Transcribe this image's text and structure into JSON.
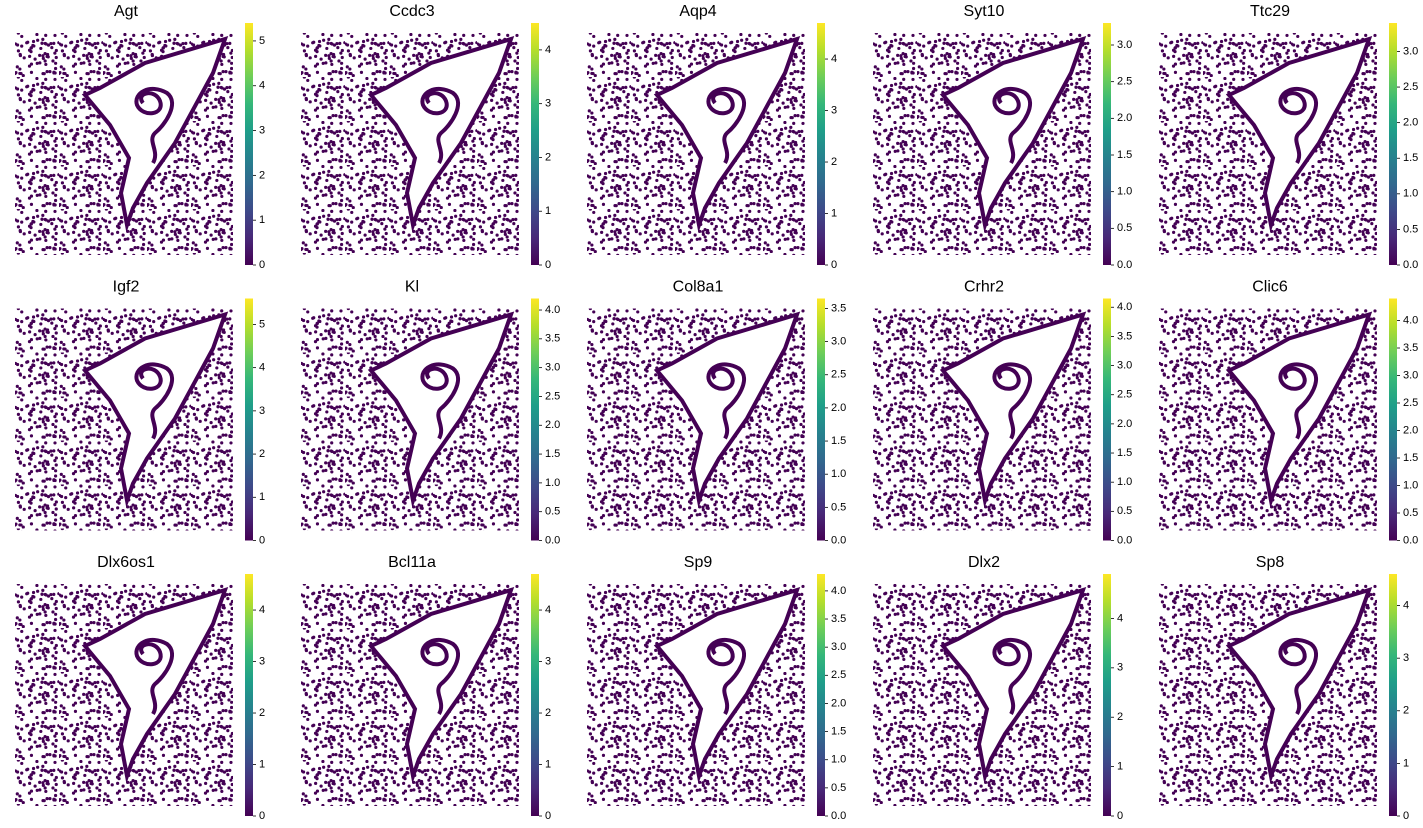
{
  "chart_data": [
    {
      "type": "scatter",
      "title": "Agt",
      "cmap": "viridis",
      "clim": [
        0,
        5.4
      ],
      "ticks": [
        0,
        1,
        2,
        3,
        4,
        5
      ]
    },
    {
      "type": "scatter",
      "title": "Ccdc3",
      "cmap": "viridis",
      "clim": [
        0,
        4.5
      ],
      "ticks": [
        0,
        1,
        2,
        3,
        4
      ]
    },
    {
      "type": "scatter",
      "title": "Aqp4",
      "cmap": "viridis",
      "clim": [
        0,
        4.7
      ],
      "ticks": [
        0,
        1,
        2,
        3,
        4
      ]
    },
    {
      "type": "scatter",
      "title": "Syt10",
      "cmap": "viridis",
      "clim": [
        0,
        3.3
      ],
      "ticks": [
        {
          "value": 0,
          "label": "0.0"
        },
        0.5,
        {
          "value": 1,
          "label": "1.0"
        },
        1.5,
        {
          "value": 2,
          "label": "2.0"
        },
        2.5,
        {
          "value": 3,
          "label": "3.0"
        }
      ]
    },
    {
      "type": "scatter",
      "title": "Ttc29",
      "cmap": "viridis",
      "clim": [
        0,
        3.4
      ],
      "ticks": [
        {
          "value": 0,
          "label": "0.0"
        },
        0.5,
        {
          "value": 1,
          "label": "1.0"
        },
        1.5,
        {
          "value": 2,
          "label": "2.0"
        },
        2.5,
        {
          "value": 3,
          "label": "3.0"
        }
      ]
    },
    {
      "type": "scatter",
      "title": "Igf2",
      "cmap": "viridis",
      "clim": [
        0,
        5.6
      ],
      "ticks": [
        0,
        1,
        2,
        3,
        4,
        5
      ]
    },
    {
      "type": "scatter",
      "title": "Kl",
      "cmap": "viridis",
      "clim": [
        0,
        4.2
      ],
      "ticks": [
        {
          "value": 0,
          "label": "0.0"
        },
        0.5,
        {
          "value": 1,
          "label": "1.0"
        },
        1.5,
        {
          "value": 2,
          "label": "2.0"
        },
        2.5,
        {
          "value": 3,
          "label": "3.0"
        },
        3.5,
        {
          "value": 4,
          "label": "4.0"
        }
      ]
    },
    {
      "type": "scatter",
      "title": "Col8a1",
      "cmap": "viridis",
      "clim": [
        0,
        3.65
      ],
      "ticks": [
        {
          "value": 0,
          "label": "0.0"
        },
        0.5,
        {
          "value": 1,
          "label": "1.0"
        },
        1.5,
        {
          "value": 2,
          "label": "2.0"
        },
        2.5,
        {
          "value": 3,
          "label": "3.0"
        },
        3.5
      ]
    },
    {
      "type": "scatter",
      "title": "Crhr2",
      "cmap": "viridis",
      "clim": [
        0,
        4.15
      ],
      "ticks": [
        {
          "value": 0,
          "label": "0.0"
        },
        0.5,
        {
          "value": 1,
          "label": "1.0"
        },
        1.5,
        {
          "value": 2,
          "label": "2.0"
        },
        2.5,
        {
          "value": 3,
          "label": "3.0"
        },
        3.5,
        {
          "value": 4,
          "label": "4.0"
        }
      ]
    },
    {
      "type": "scatter",
      "title": "Clic6",
      "cmap": "viridis",
      "clim": [
        0,
        4.4
      ],
      "ticks": [
        {
          "value": 0,
          "label": "0.0"
        },
        0.5,
        {
          "value": 1,
          "label": "1.0"
        },
        1.5,
        {
          "value": 2,
          "label": "2.0"
        },
        2.5,
        {
          "value": 3,
          "label": "3.0"
        },
        3.5,
        {
          "value": 4,
          "label": "4.0"
        }
      ]
    },
    {
      "type": "scatter",
      "title": "Dlx6os1",
      "cmap": "viridis",
      "clim": [
        0,
        4.7
      ],
      "ticks": [
        0,
        1,
        2,
        3,
        4
      ]
    },
    {
      "type": "scatter",
      "title": "Bcl11a",
      "cmap": "viridis",
      "clim": [
        0,
        4.7
      ],
      "ticks": [
        0,
        1,
        2,
        3,
        4
      ]
    },
    {
      "type": "scatter",
      "title": "Sp9",
      "cmap": "viridis",
      "clim": [
        0,
        4.3
      ],
      "ticks": [
        {
          "value": 0,
          "label": "0.0"
        },
        0.5,
        {
          "value": 1,
          "label": "1.0"
        },
        1.5,
        {
          "value": 2,
          "label": "2.0"
        },
        2.5,
        {
          "value": 3,
          "label": "3.0"
        },
        3.5,
        {
          "value": 4,
          "label": "4.0"
        }
      ]
    },
    {
      "type": "scatter",
      "title": "Dlx2",
      "cmap": "viridis",
      "clim": [
        0,
        4.9
      ],
      "ticks": [
        0,
        1,
        2,
        3,
        4
      ]
    },
    {
      "type": "scatter",
      "title": "Sp8",
      "cmap": "viridis",
      "clim": [
        0,
        4.6
      ],
      "ticks": [
        0,
        1,
        2,
        3,
        4
      ]
    }
  ]
}
